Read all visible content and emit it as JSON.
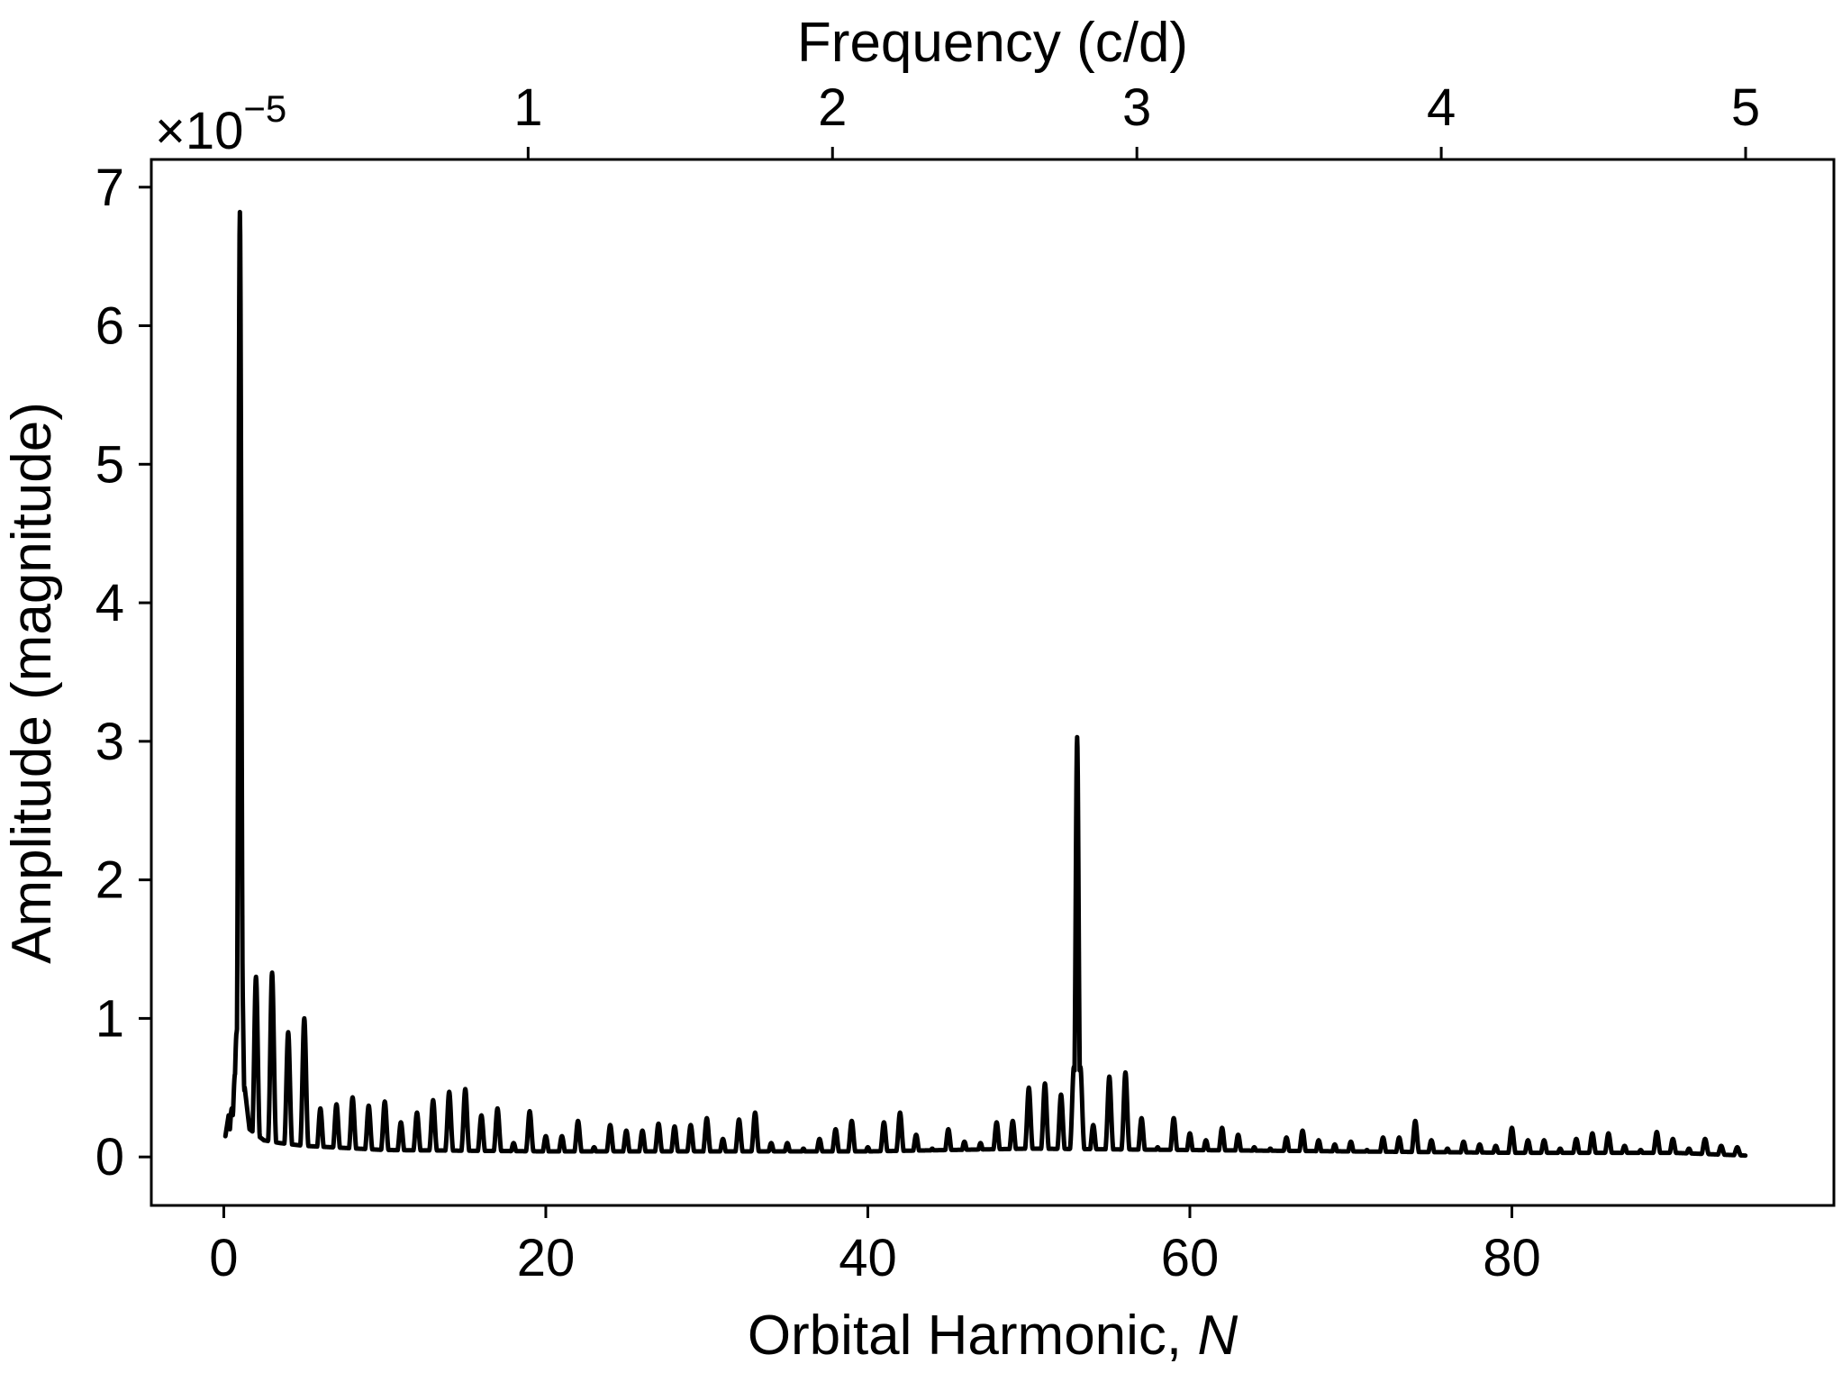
{
  "chart_data": {
    "type": "line",
    "title": "",
    "xlabel": "Orbital Harmonic, ",
    "xlabel_italic": "N",
    "ylabel": "Amplitude (magnitude)",
    "top_xlabel": "Frequency (c/d)",
    "y_scale_prefix": "×10",
    "y_scale_exponent": "−5",
    "xlim": [
      -4.5,
      100
    ],
    "ylim": [
      -0.35,
      7.2
    ],
    "top_xlim": [
      -0.238,
      5.29
    ],
    "x_ticks": [
      0,
      20,
      40,
      60,
      80
    ],
    "x_tick_labels": [
      "0",
      "20",
      "40",
      "60",
      "80"
    ],
    "y_ticks": [
      0,
      1,
      2,
      3,
      4,
      5,
      6,
      7
    ],
    "y_tick_labels": [
      "0",
      "1",
      "2",
      "3",
      "4",
      "5",
      "6",
      "7"
    ],
    "top_x_ticks": [
      1,
      2,
      3,
      4,
      5
    ],
    "top_x_tick_labels": [
      "1",
      "2",
      "3",
      "4",
      "5"
    ],
    "grid": false,
    "legend": "none",
    "line_color": "#000000",
    "baseline": {
      "x": [
        0.1,
        0.3,
        0.5,
        0.7,
        0.9,
        1.3,
        1.6,
        2.5,
        3.5,
        5.0,
        10,
        20,
        30,
        40,
        50,
        60,
        70,
        80,
        90,
        94.5
      ],
      "y": [
        0.15,
        0.3,
        0.05,
        0.6,
        0.1,
        0.5,
        0.2,
        0.12,
        0.1,
        0.08,
        0.05,
        0.04,
        0.04,
        0.04,
        0.06,
        0.05,
        0.04,
        0.03,
        0.03,
        0.01
      ]
    },
    "peaks": {
      "x": [
        0.5,
        0.7,
        0.8,
        0.9,
        1.0,
        1.1,
        2,
        3,
        4,
        5,
        6,
        7,
        8,
        9,
        10,
        11,
        12,
        13,
        14,
        15,
        16,
        17,
        18,
        19,
        20,
        21,
        22,
        23,
        24,
        25,
        26,
        27,
        28,
        29,
        30,
        31,
        32,
        33,
        34,
        35,
        36,
        37,
        38,
        39,
        40,
        41,
        42,
        43,
        44,
        45,
        46,
        47,
        48,
        49,
        50,
        51,
        52,
        52.8,
        53,
        53.2,
        54,
        55,
        56,
        57,
        58,
        59,
        60,
        61,
        62,
        63,
        64,
        65,
        66,
        67,
        68,
        69,
        70,
        71,
        72,
        73,
        74,
        75,
        76,
        77,
        78,
        79,
        80,
        81,
        82,
        83,
        84,
        85,
        86,
        87,
        88,
        89,
        90,
        91,
        92,
        93,
        94
      ],
      "y": [
        0.35,
        0.6,
        0.9,
        0.75,
        6.82,
        1.5,
        1.3,
        1.33,
        0.9,
        1.0,
        0.35,
        0.38,
        0.43,
        0.37,
        0.4,
        0.25,
        0.32,
        0.41,
        0.47,
        0.49,
        0.3,
        0.35,
        0.1,
        0.33,
        0.15,
        0.15,
        0.26,
        0.07,
        0.23,
        0.19,
        0.19,
        0.24,
        0.22,
        0.23,
        0.28,
        0.13,
        0.27,
        0.32,
        0.1,
        0.1,
        0.06,
        0.13,
        0.2,
        0.26,
        0.07,
        0.25,
        0.32,
        0.16,
        0.06,
        0.2,
        0.11,
        0.1,
        0.25,
        0.26,
        0.5,
        0.53,
        0.45,
        0.65,
        3.03,
        0.65,
        0.23,
        0.58,
        0.61,
        0.28,
        0.07,
        0.28,
        0.17,
        0.12,
        0.21,
        0.16,
        0.07,
        0.06,
        0.14,
        0.19,
        0.12,
        0.09,
        0.11,
        0.05,
        0.14,
        0.14,
        0.26,
        0.12,
        0.06,
        0.11,
        0.09,
        0.08,
        0.21,
        0.12,
        0.12,
        0.06,
        0.13,
        0.17,
        0.17,
        0.08,
        0.05,
        0.18,
        0.13,
        0.06,
        0.13,
        0.08,
        0.07
      ]
    }
  }
}
